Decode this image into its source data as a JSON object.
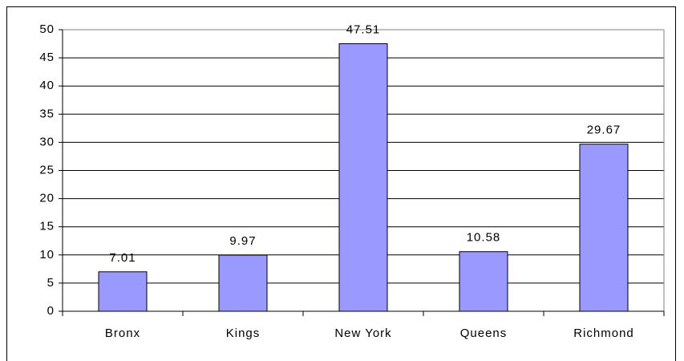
{
  "chart_data": {
    "type": "bar",
    "categories": [
      "Bronx",
      "Kings",
      "New York",
      "Queens",
      "Richmond"
    ],
    "values": [
      7.01,
      9.97,
      47.51,
      10.58,
      29.67
    ],
    "color": "#9999ff",
    "ylim": [
      0,
      50
    ],
    "yticks": [
      0,
      5,
      10,
      15,
      20,
      25,
      30,
      35,
      40,
      45,
      50
    ],
    "grid": true,
    "data_labels": true
  }
}
